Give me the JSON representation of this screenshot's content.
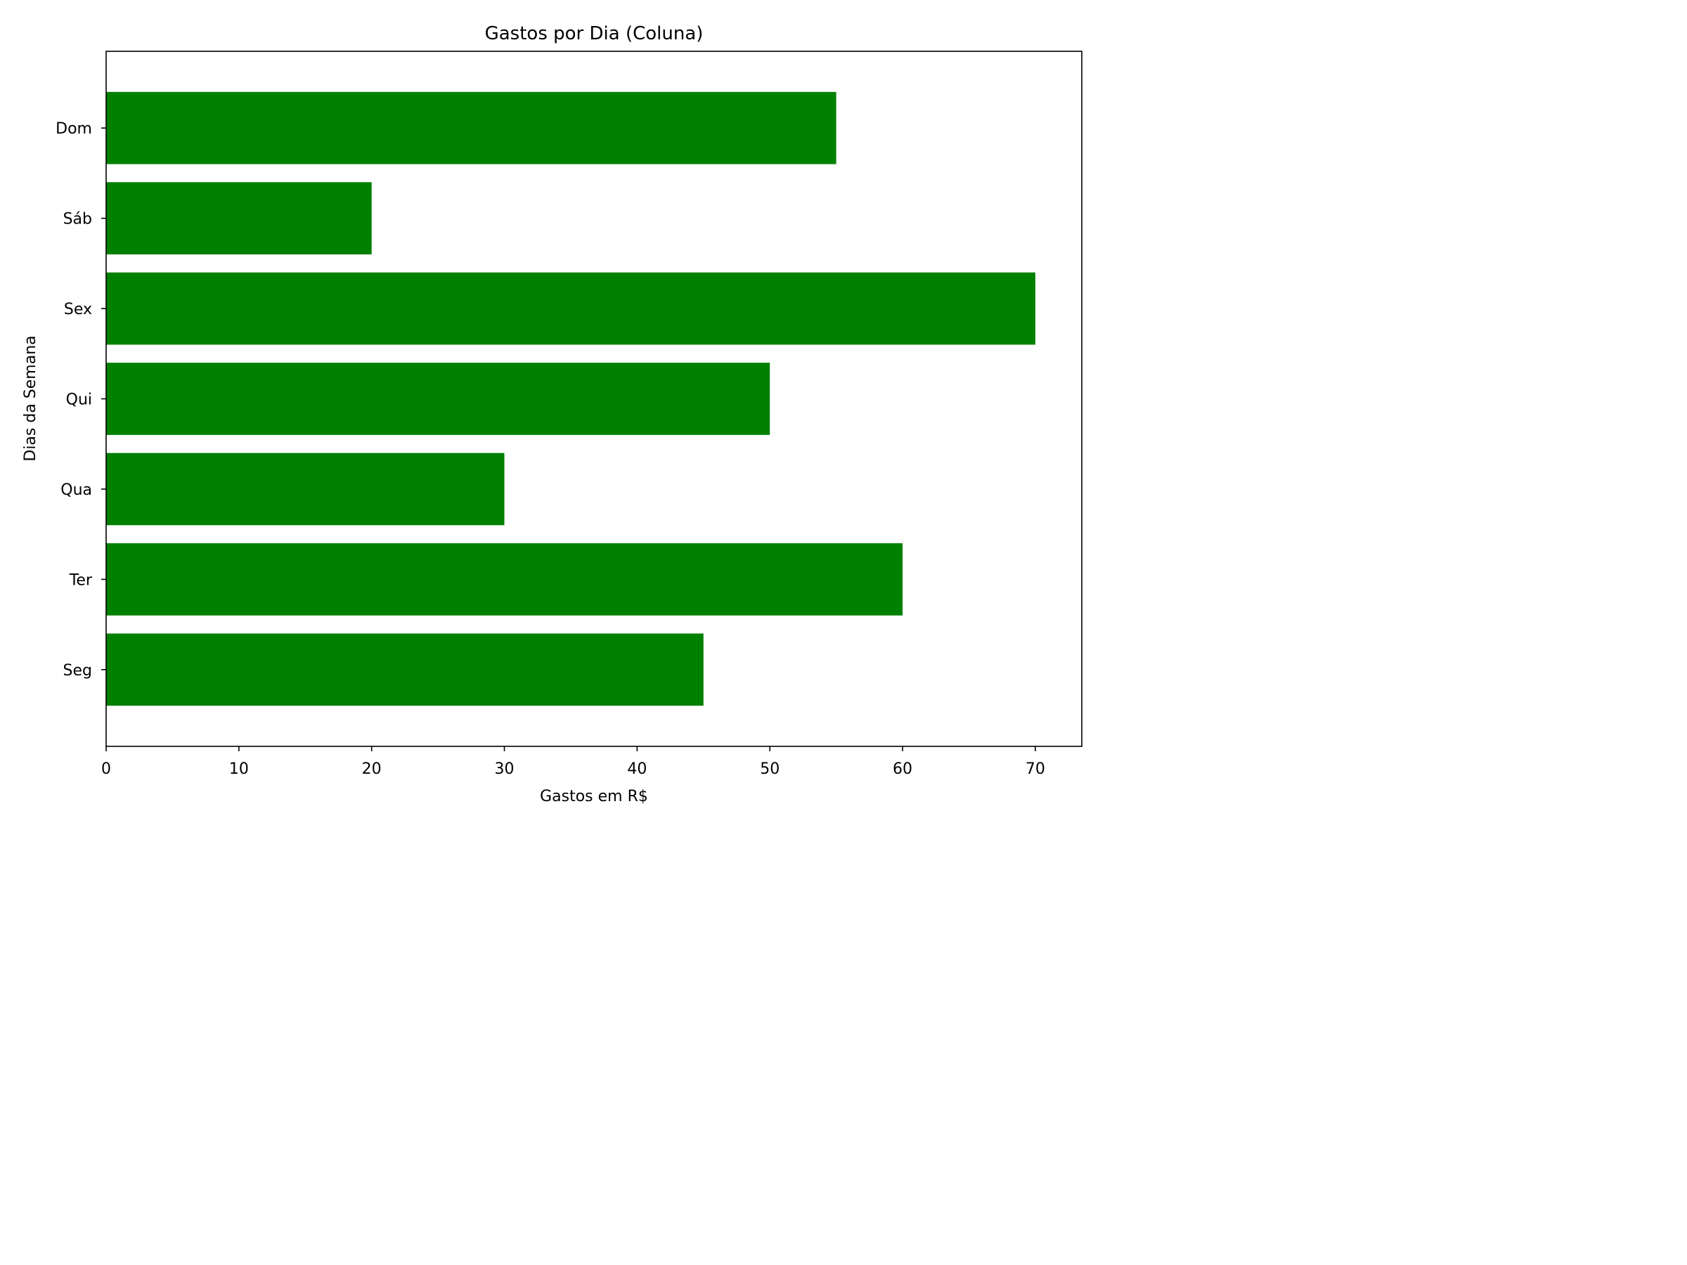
{
  "chart_data": {
    "type": "bar",
    "orientation": "horizontal",
    "title": "Gastos por Dia (Coluna)",
    "xlabel": "Gastos em R$",
    "ylabel": "Dias da Semana",
    "categories": [
      "Seg",
      "Ter",
      "Qua",
      "Qui",
      "Sex",
      "Sáb",
      "Dom"
    ],
    "values": [
      45,
      60,
      30,
      50,
      70,
      20,
      55
    ],
    "xlim": [
      0,
      73.5
    ],
    "xticks": [
      0,
      10,
      20,
      30,
      40,
      50,
      60,
      70
    ],
    "grid": false,
    "bar_color": "#008000"
  }
}
